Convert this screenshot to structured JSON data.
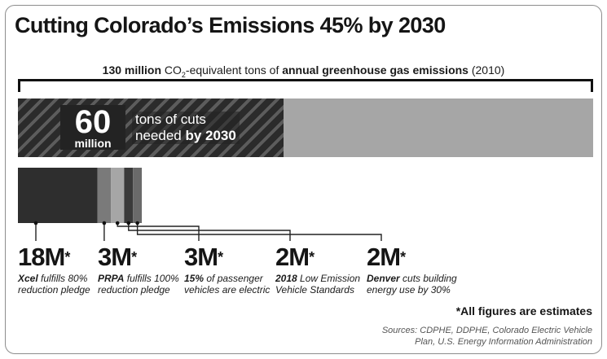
{
  "title": "Cutting Colorado’s Emissions 45% by 2030",
  "total": {
    "value_bold": "130 million",
    "co2_prefix": "CO",
    "co2_sub": "2",
    "text_middle": "-equivalent tons of ",
    "text_bold": "annual greenhouse gas emissions",
    "text_end": " (2010)"
  },
  "cuts": {
    "number": "60",
    "unit": "million",
    "line1": "tons of cuts",
    "line2_prefix": "needed ",
    "line2_bold": "by 2030"
  },
  "chart_data": {
    "type": "bar",
    "title": "Cutting Colorado’s Emissions 45% by 2030",
    "total_emissions_million_tons": 130,
    "cuts_needed_million_tons": 60,
    "categories": [
      "Xcel fulfills 80% reduction pledge",
      "PRPA fulfills 100% reduction pledge",
      "15% of passenger vehicles are electric",
      "2018 Low Emission Vehicle Standards",
      "Denver cuts building energy use by 30%"
    ],
    "values": [
      18,
      3,
      3,
      2,
      2
    ],
    "unit": "million tons",
    "segment_colors": [
      "#2e2e2e",
      "#7a7a7a",
      "#a6a6a6",
      "#3a3a3a",
      "#6a6a6a"
    ]
  },
  "items": [
    {
      "value": "18M",
      "star": "*",
      "bold": "Xcel",
      "rest1": " fulfills 80%",
      "line2": "reduction pledge"
    },
    {
      "value": "3M",
      "star": "*",
      "bold": "PRPA",
      "rest1": " fulfills 100%",
      "line2": "reduction pledge"
    },
    {
      "value": "3M",
      "star": "*",
      "bold": "15%",
      "rest1": " of passenger",
      "line2": "vehicles are electric"
    },
    {
      "value": "2M",
      "star": "*",
      "bold": "2018",
      "rest1": " Low Emission",
      "line2": "Vehicle Standards"
    },
    {
      "value": "2M",
      "star": "*",
      "bold": "Denver",
      "rest1": " cuts building",
      "line2": "energy use by 30%"
    }
  ],
  "note": "*All figures are estimates",
  "sources_line1": "Sources: CDPHE, DDPHE, Colorado Electric Vehicle",
  "sources_line2": "Plan, U.S. Energy Information Administration"
}
